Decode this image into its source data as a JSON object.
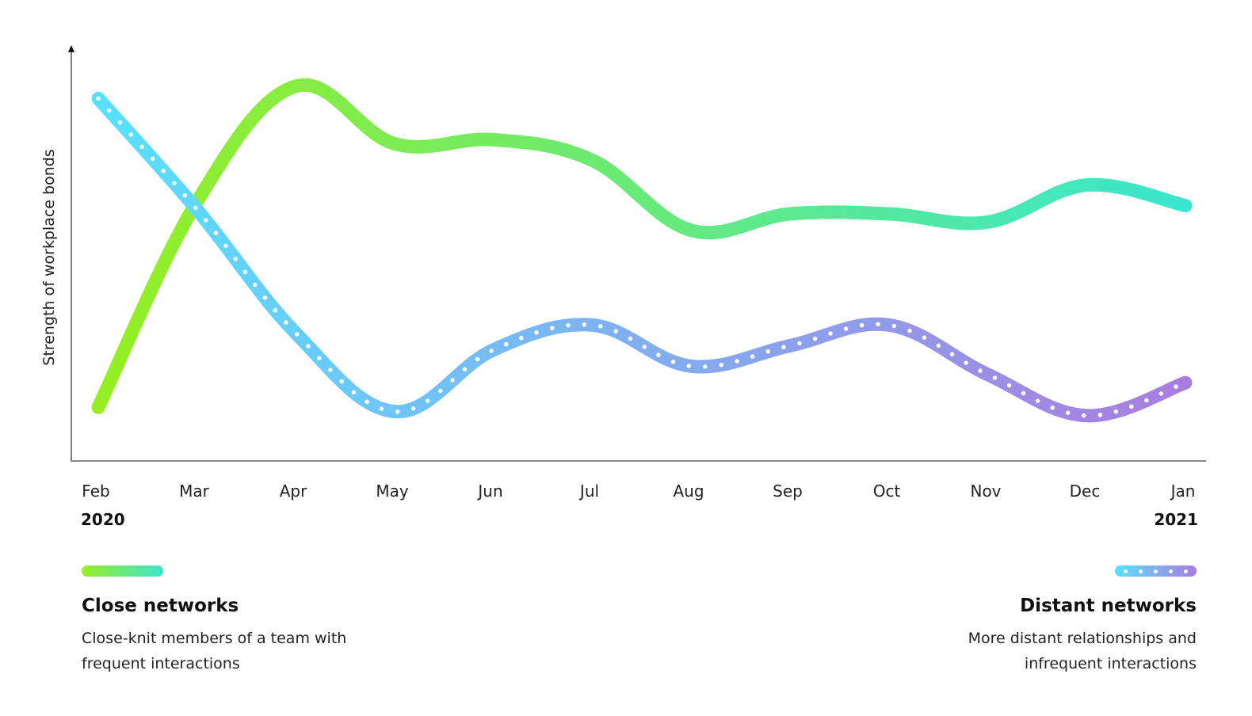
{
  "chart_data": {
    "type": "line",
    "title": "",
    "xlabel": "",
    "ylabel": "Strength of workplace bonds",
    "categories": [
      "Feb",
      "Mar",
      "Apr",
      "May",
      "Jun",
      "Jul",
      "Aug",
      "Sep",
      "Oct",
      "Nov",
      "Dec",
      "Jan"
    ],
    "year_labels": {
      "start": "2020",
      "end": "2021"
    },
    "ylim": [
      0,
      100
    ],
    "grid": false,
    "y_ticks_shown": false,
    "legend_position": "bottom",
    "series": [
      {
        "name": "Close networks",
        "description": "Close-knit members of a team with frequent interactions",
        "style": "solid",
        "gradient": [
          "#96ee22",
          "#3ae6cf"
        ],
        "values": [
          13,
          63,
          91,
          77,
          78,
          73,
          56,
          60,
          60,
          58,
          67,
          62
        ]
      },
      {
        "name": "Distant networks",
        "description": "More distant relationships and infrequent interactions",
        "style": "dotted",
        "gradient": [
          "#58e0ff",
          "#a97de0"
        ],
        "values": [
          88,
          61,
          31,
          12,
          27,
          33,
          23,
          28,
          33,
          21,
          11,
          19
        ]
      }
    ]
  },
  "axis": {
    "ylabel": "Strength of workplace bonds",
    "months": [
      "Feb",
      "Mar",
      "Apr",
      "May",
      "Jun",
      "Jul",
      "Aug",
      "Sep",
      "Oct",
      "Nov",
      "Dec",
      "Jan"
    ],
    "year_start": "2020",
    "year_end": "2021"
  },
  "legend": {
    "close": {
      "title": "Close networks",
      "description_line1": "Close-knit members of a team with",
      "description_line2": "frequent interactions"
    },
    "distant": {
      "title": "Distant networks",
      "description_line1": "More distant relationships and",
      "description_line2": "infrequent interactions"
    }
  },
  "colors": {
    "close_start": "#96ee22",
    "close_end": "#3ae6cf",
    "distant_start": "#58e0ff",
    "distant_end": "#a97de0",
    "axis": "#808080"
  }
}
